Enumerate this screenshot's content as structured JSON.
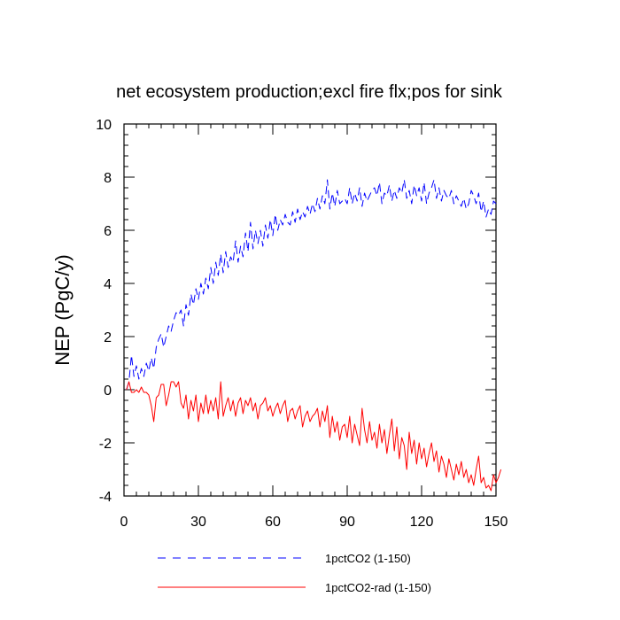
{
  "chart_data": {
    "type": "line",
    "title": "net ecosystem production;excl fire flx;pos for sink",
    "xlabel": "",
    "ylabel": "NEP  (PgC/y)",
    "xlim": [
      0,
      150
    ],
    "ylim": [
      -4,
      10
    ],
    "x_ticks": [
      "0",
      "30",
      "60",
      "90",
      "120",
      "150"
    ],
    "y_ticks": [
      "-4",
      "-2",
      "0",
      "2",
      "4",
      "6",
      "8",
      "10"
    ],
    "grid": false,
    "legend_position": "bottom",
    "series": [
      {
        "name": "1pctCO2 (1-150)",
        "color": "#0000ff",
        "dash": "dashed",
        "x_start": 1,
        "values": [
          0.0,
          0.3,
          1.3,
          0.5,
          0.9,
          0.4,
          0.8,
          0.5,
          1.0,
          0.7,
          1.2,
          0.8,
          1.6,
          1.9,
          2.1,
          1.6,
          2.0,
          2.4,
          2.2,
          2.6,
          2.9,
          2.8,
          3.0,
          2.4,
          3.2,
          2.8,
          3.6,
          3.2,
          3.8,
          3.4,
          4.0,
          3.6,
          4.2,
          3.8,
          4.6,
          4.0,
          4.8,
          4.3,
          5.1,
          4.4,
          5.2,
          4.6,
          5.0,
          4.8,
          5.6,
          4.8,
          5.4,
          5.0,
          5.9,
          5.2,
          6.3,
          5.3,
          6.0,
          5.5,
          6.0,
          5.4,
          6.2,
          5.7,
          6.4,
          5.8,
          6.6,
          6.0,
          6.4,
          6.2,
          6.6,
          6.3,
          6.2,
          6.7,
          6.3,
          6.8,
          6.4,
          6.7,
          6.5,
          6.9,
          6.6,
          7.0,
          6.7,
          7.2,
          6.8,
          7.3,
          7.0,
          7.9,
          6.8,
          7.4,
          6.9,
          7.5,
          7.0,
          7.1,
          7.2,
          7.0,
          7.6,
          7.0,
          7.4,
          7.1,
          7.6,
          6.9,
          7.4,
          7.1,
          7.3,
          7.5,
          7.6,
          7.3,
          7.8,
          7.0,
          7.4,
          7.3,
          7.7,
          7.1,
          7.5,
          7.2,
          7.6,
          7.4,
          7.9,
          7.2,
          7.5,
          7.0,
          7.7,
          7.3,
          7.6,
          7.1,
          7.8,
          7.0,
          7.4,
          7.6,
          7.9,
          7.2,
          7.6,
          7.1,
          7.5,
          7.3,
          7.2,
          7.5,
          7.0,
          7.3,
          7.1,
          6.9,
          7.2,
          6.8,
          7.0,
          7.5,
          7.3,
          7.0,
          7.4,
          6.7,
          7.1,
          6.5,
          6.8,
          6.6,
          7.1,
          7.0
        ]
      },
      {
        "name": "1pctCO2-rad (1-150)",
        "color": "#ff0000",
        "dash": "solid",
        "x_start": 1,
        "values": [
          0.0,
          0.3,
          -0.1,
          -0.1,
          0.0,
          -0.1,
          0.1,
          -0.1,
          -0.1,
          -0.2,
          -0.6,
          -1.2,
          -0.3,
          -0.2,
          0.2,
          0.2,
          -0.6,
          -0.2,
          0.3,
          0.3,
          0.1,
          0.3,
          -0.5,
          -0.7,
          -0.2,
          -1.1,
          -0.4,
          -0.8,
          -0.2,
          -1.2,
          -0.5,
          -0.9,
          -0.2,
          -0.9,
          -0.4,
          -0.8,
          -0.3,
          -1.1,
          0.3,
          -1.0,
          -0.6,
          -0.3,
          -0.8,
          -0.4,
          -1.0,
          -0.5,
          -0.3,
          -0.9,
          -0.4,
          -0.6,
          -0.3,
          -0.8,
          -0.5,
          -1.1,
          -0.6,
          -0.5,
          -0.3,
          -0.8,
          -0.6,
          -1.0,
          -0.7,
          -0.5,
          -0.9,
          -0.6,
          -0.4,
          -1.2,
          -0.8,
          -0.7,
          -1.1,
          -0.8,
          -0.6,
          -1.4,
          -1.0,
          -0.8,
          -1.2,
          -1.0,
          -0.9,
          -0.7,
          -1.4,
          -0.8,
          -1.2,
          -0.6,
          -1.8,
          -1.0,
          -1.6,
          -1.2,
          -1.9,
          -1.4,
          -1.3,
          -1.8,
          -1.0,
          -2.0,
          -1.3,
          -1.7,
          -2.1,
          -0.7,
          -1.5,
          -2.0,
          -1.2,
          -1.9,
          -1.6,
          -2.2,
          -1.3,
          -2.0,
          -1.5,
          -2.4,
          -1.7,
          -1.1,
          -2.3,
          -1.4,
          -2.6,
          -1.8,
          -2.1,
          -3.0,
          -1.6,
          -2.4,
          -1.9,
          -2.8,
          -2.0,
          -2.6,
          -2.2,
          -2.9,
          -2.4,
          -2.0,
          -2.7,
          -2.3,
          -3.1,
          -2.5,
          -2.8,
          -3.3,
          -2.6,
          -3.0,
          -3.4,
          -2.8,
          -3.2,
          -2.7,
          -3.3,
          -3.0,
          -3.5,
          -3.2,
          -3.6,
          -3.0,
          -2.5,
          -3.5,
          -3.3,
          -3.7,
          -3.6,
          -3.8,
          -3.2,
          -3.5,
          -3.3,
          -3.0
        ]
      }
    ]
  }
}
